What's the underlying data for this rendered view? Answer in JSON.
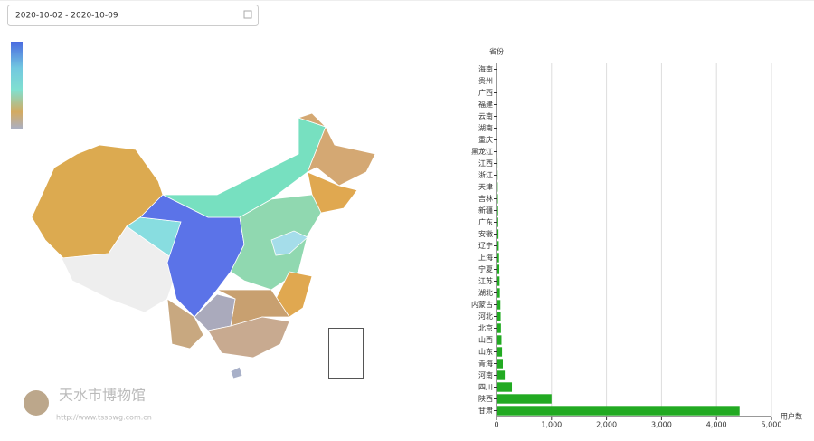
{
  "date_range": "2020-10-02 - 2020-10-09",
  "watermark": {
    "title": "天水市博物馆",
    "url": "http://www.tssbwg.com.cn"
  },
  "chart_data": {
    "type": "bar",
    "orientation": "horizontal",
    "y_label": "省份",
    "x_label": "用户数",
    "categories": [
      "甘肃",
      "陕西",
      "四川",
      "河南",
      "青海",
      "山东",
      "山西",
      "北京",
      "河北",
      "内蒙古",
      "湖北",
      "江苏",
      "宁夏",
      "上海",
      "辽宁",
      "安徽",
      "广东",
      "新疆",
      "吉林",
      "天津",
      "浙江",
      "江西",
      "黑龙江",
      "重庆",
      "湖南",
      "云南",
      "福建",
      "广西",
      "贵州",
      "海南"
    ],
    "values": [
      4420,
      1000,
      280,
      150,
      115,
      100,
      90,
      80,
      75,
      70,
      60,
      55,
      50,
      45,
      40,
      35,
      30,
      28,
      25,
      22,
      20,
      18,
      15,
      12,
      10,
      8,
      6,
      5,
      4,
      3
    ],
    "color": "#22aa22",
    "xlim": [
      0,
      5000
    ],
    "xticks": [
      0,
      {
        "value": 1000,
        "label": "1,000"
      },
      {
        "value": 2000,
        "label": "2,000"
      },
      {
        "value": 3000,
        "label": "3,000"
      },
      {
        "value": 4000,
        "label": "4,000"
      },
      {
        "value": 5000,
        "label": "5,000"
      }
    ],
    "grid": true
  }
}
